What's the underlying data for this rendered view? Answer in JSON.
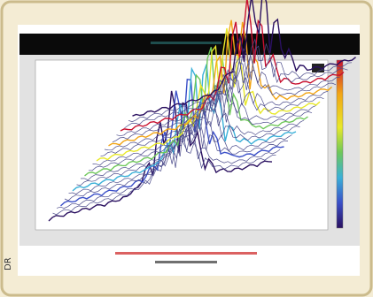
{
  "credit": "DR"
}
